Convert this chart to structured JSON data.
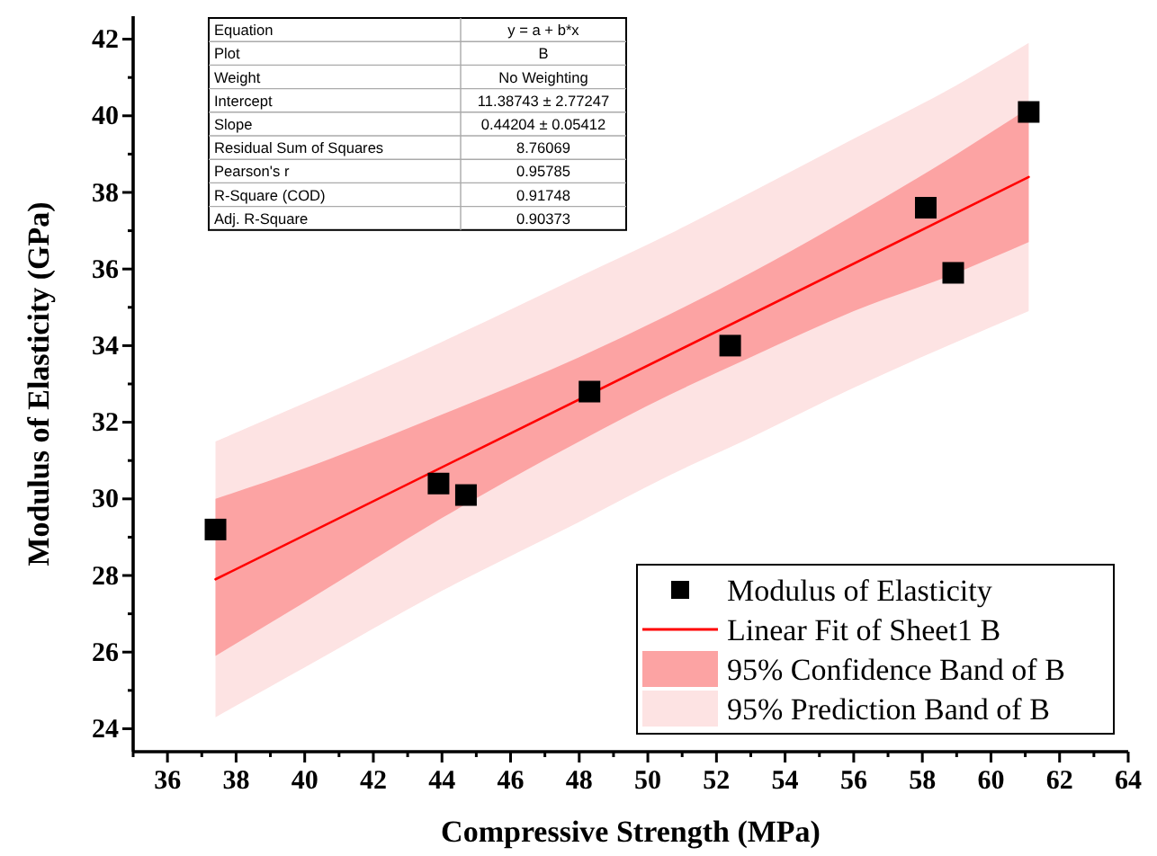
{
  "chart_data": {
    "type": "scatter",
    "xlabel": "Compressive Strength (MPa)",
    "ylabel": "Modulus of Elasticity (GPa)",
    "xlim": [
      35,
      64
    ],
    "ylim": [
      23.4,
      42.6
    ],
    "xticks": [
      {
        "value": 35,
        "label": null
      },
      36,
      {
        "value": 37,
        "label": null
      },
      38,
      {
        "value": 39,
        "label": null
      },
      40,
      {
        "value": 41,
        "label": null
      },
      42,
      {
        "value": 43,
        "label": null
      },
      44,
      {
        "value": 45,
        "label": null
      },
      46,
      {
        "value": 47,
        "label": null
      },
      48,
      {
        "value": 49,
        "label": null
      },
      50,
      {
        "value": 51,
        "label": null
      },
      52,
      {
        "value": 53,
        "label": null
      },
      54,
      {
        "value": 55,
        "label": null
      },
      56,
      {
        "value": 57,
        "label": null
      },
      58,
      {
        "value": 59,
        "label": null
      },
      60,
      {
        "value": 61,
        "label": null
      },
      62,
      {
        "value": 63,
        "label": null
      },
      64
    ],
    "yticks": [
      24,
      {
        "value": 25,
        "label": null
      },
      26,
      {
        "value": 27,
        "label": null
      },
      28,
      {
        "value": 29,
        "label": null
      },
      30,
      {
        "value": 31,
        "label": null
      },
      32,
      {
        "value": 33,
        "label": null
      },
      34,
      {
        "value": 35,
        "label": null
      },
      36,
      {
        "value": 37,
        "label": null
      },
      38,
      {
        "value": 39,
        "label": null
      },
      40,
      {
        "value": 41,
        "label": null
      },
      42
    ],
    "grid": false,
    "legend": "bottom right",
    "series": [
      {
        "name": "95% Prediction Band of B",
        "type": "line",
        "color": "#fde3e3",
        "x": [
          37.4,
          40,
          44,
          48,
          50.6,
          53,
          56,
          59,
          61.1
        ],
        "values": [
          null,
          null,
          null,
          null,
          null,
          null,
          null,
          null,
          null
        ],
        "lower": [
          24.3,
          25.6,
          27.6,
          29.4,
          30.6,
          31.6,
          32.9,
          34.1,
          34.9
        ],
        "upper": [
          31.5,
          32.5,
          34.1,
          35.8,
          36.9,
          38.0,
          39.4,
          40.8,
          41.9
        ]
      },
      {
        "name": "95% Confidence Band of B",
        "type": "line",
        "color": "#fca3a3",
        "x": [
          37.4,
          40,
          44,
          48,
          50.6,
          53,
          56,
          59,
          61.1
        ],
        "values": [
          null,
          null,
          null,
          null,
          null,
          null,
          null,
          null,
          null
        ],
        "lower": [
          25.9,
          27.3,
          29.5,
          31.5,
          32.7,
          33.7,
          34.9,
          35.9,
          36.7
        ],
        "upper": [
          30.0,
          30.8,
          32.2,
          33.7,
          34.8,
          35.9,
          37.4,
          39.0,
          40.2
        ]
      },
      {
        "name": "Linear Fit of Sheet1 B",
        "type": "line",
        "color": "#ff0000",
        "marker": "none",
        "x": [
          37.4,
          61.1
        ],
        "values": [
          27.9,
          38.4
        ]
      },
      {
        "name": "Modulus of Elasticity",
        "marker": "square",
        "color": "#000000",
        "x": [
          37.4,
          43.9,
          44.7,
          48.3,
          52.4,
          58.1,
          58.9,
          61.1
        ],
        "values": [
          29.2,
          30.4,
          30.1,
          32.8,
          34.0,
          37.6,
          35.9,
          40.1
        ]
      }
    ],
    "annotations": [
      "Equation",
      "y = a + b*x",
      "Plot",
      "B",
      "Weight",
      "No Weighting",
      "Intercept",
      "11.38743 ± 2.77247",
      "Slope",
      "0.44204 ± 0.05412",
      "Residual Sum of Squares",
      "8.76069",
      "Pearson's r",
      "0.95785",
      "R-Square (COD)",
      "0.91748",
      "Adj. R-Square",
      "0.90373"
    ]
  }
}
